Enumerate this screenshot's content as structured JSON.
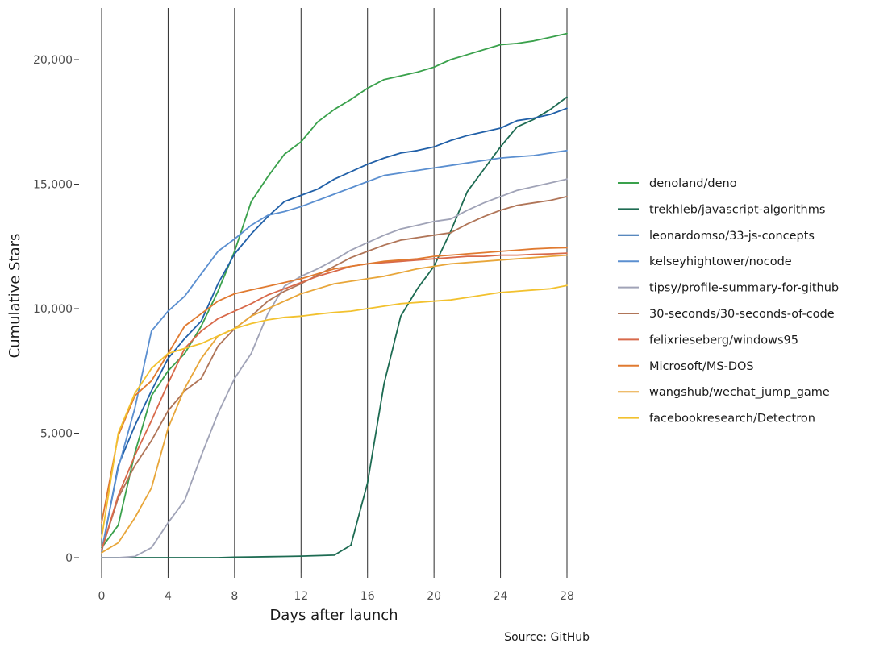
{
  "chart_data": {
    "type": "line",
    "xlabel": "Days after launch",
    "ylabel": "Cumulative Stars",
    "caption": "Source: GitHub",
    "xlim": [
      0,
      28
    ],
    "ylim": [
      -600,
      22000
    ],
    "x_ticks": [
      0,
      4,
      8,
      12,
      16,
      20,
      24,
      28
    ],
    "x_tick_labels": [
      "0",
      "4",
      "8",
      "12",
      "16",
      "20",
      "24",
      "28"
    ],
    "y_ticks": [
      0,
      5000,
      10000,
      15000,
      20000
    ],
    "y_tick_labels": [
      "0",
      "5,000",
      "10,000",
      "15,000",
      "20,000"
    ],
    "grid": "vertical lines at x ticks",
    "legend_position": "right",
    "x": [
      0,
      1,
      2,
      3,
      4,
      5,
      6,
      7,
      8,
      9,
      10,
      11,
      12,
      13,
      14,
      15,
      16,
      17,
      18,
      19,
      20,
      21,
      22,
      23,
      24,
      25,
      26,
      27,
      28
    ],
    "series": [
      {
        "name": "denoland/deno",
        "color": "#3aa14c",
        "values": [
          400,
          1300,
          4200,
          6500,
          7500,
          8200,
          9300,
          10700,
          12300,
          14300,
          15300,
          16200,
          16700,
          17500,
          18000,
          18400,
          18850,
          19200,
          19350,
          19500,
          19700,
          20000,
          20200,
          20400,
          20600,
          20650,
          20750,
          20900,
          21050
        ]
      },
      {
        "name": "trekhleb/javascript-algorithms",
        "color": "#1d6b52",
        "values": [
          0,
          0,
          0,
          0,
          0,
          0,
          0,
          0,
          20,
          30,
          40,
          50,
          60,
          80,
          100,
          500,
          3000,
          7000,
          9700,
          10800,
          11700,
          13100,
          14700,
          15600,
          16500,
          17300,
          17600,
          18000,
          18500
        ]
      },
      {
        "name": "leonardomso/33-js-concepts",
        "color": "#2160a8",
        "values": [
          200,
          3700,
          5300,
          6700,
          8000,
          8800,
          9500,
          11000,
          12200,
          13000,
          13700,
          14300,
          14550,
          14800,
          15200,
          15500,
          15800,
          16050,
          16250,
          16350,
          16500,
          16750,
          16950,
          17100,
          17250,
          17550,
          17650,
          17800,
          18050
        ]
      },
      {
        "name": "kelseyhightower/nocode",
        "color": "#5b8fd0",
        "values": [
          300,
          3600,
          6000,
          9100,
          9900,
          10500,
          11400,
          12300,
          12800,
          13350,
          13750,
          13900,
          14100,
          14350,
          14600,
          14850,
          15100,
          15350,
          15450,
          15550,
          15650,
          15750,
          15850,
          15950,
          16050,
          16100,
          16150,
          16250,
          16350
        ]
      },
      {
        "name": "tipsy/profile-summary-for-github",
        "color": "#a0a3b7",
        "values": [
          0,
          0,
          50,
          400,
          1400,
          2300,
          4100,
          5800,
          7200,
          8200,
          9800,
          10900,
          11300,
          11600,
          11950,
          12350,
          12650,
          12950,
          13200,
          13350,
          13500,
          13600,
          13950,
          14250,
          14500,
          14750,
          14900,
          15050,
          15200
        ]
      },
      {
        "name": "30-seconds/30-seconds-of-code",
        "color": "#b07558",
        "values": [
          300,
          2400,
          3700,
          4700,
          5900,
          6700,
          7200,
          8500,
          9200,
          9700,
          10300,
          10700,
          11000,
          11350,
          11700,
          12050,
          12300,
          12550,
          12750,
          12850,
          12950,
          13050,
          13400,
          13700,
          13950,
          14150,
          14250,
          14350,
          14500
        ]
      },
      {
        "name": "felixrieseberg/windows95",
        "color": "#d8694a",
        "values": [
          300,
          2500,
          4100,
          5500,
          7000,
          8400,
          9100,
          9600,
          9900,
          10200,
          10550,
          10800,
          11050,
          11300,
          11500,
          11700,
          11800,
          11850,
          11900,
          11950,
          12000,
          12050,
          12100,
          12100,
          12150,
          12150,
          12180,
          12200,
          12230
        ]
      },
      {
        "name": "Microsoft/MS-DOS",
        "color": "#e07a30",
        "values": [
          1400,
          4900,
          6500,
          7100,
          8200,
          9300,
          9800,
          10300,
          10600,
          10750,
          10900,
          11050,
          11200,
          11400,
          11600,
          11700,
          11800,
          11900,
          11950,
          12000,
          12100,
          12150,
          12200,
          12250,
          12300,
          12350,
          12400,
          12430,
          12450
        ]
      },
      {
        "name": "wangshub/wechat_jump_game",
        "color": "#e8a63a",
        "values": [
          200,
          600,
          1600,
          2800,
          5200,
          6800,
          8000,
          8900,
          9200,
          9700,
          10000,
          10300,
          10600,
          10800,
          11000,
          11100,
          11200,
          11300,
          11450,
          11600,
          11700,
          11800,
          11850,
          11900,
          11950,
          12000,
          12050,
          12100,
          12150
        ]
      },
      {
        "name": "facebookresearch/Detectron",
        "color": "#f2c12e",
        "values": [
          800,
          5000,
          6600,
          7600,
          8200,
          8400,
          8600,
          8900,
          9200,
          9400,
          9550,
          9650,
          9700,
          9780,
          9850,
          9900,
          10000,
          10100,
          10200,
          10250,
          10300,
          10350,
          10450,
          10550,
          10650,
          10700,
          10750,
          10800,
          10930
        ]
      }
    ]
  }
}
